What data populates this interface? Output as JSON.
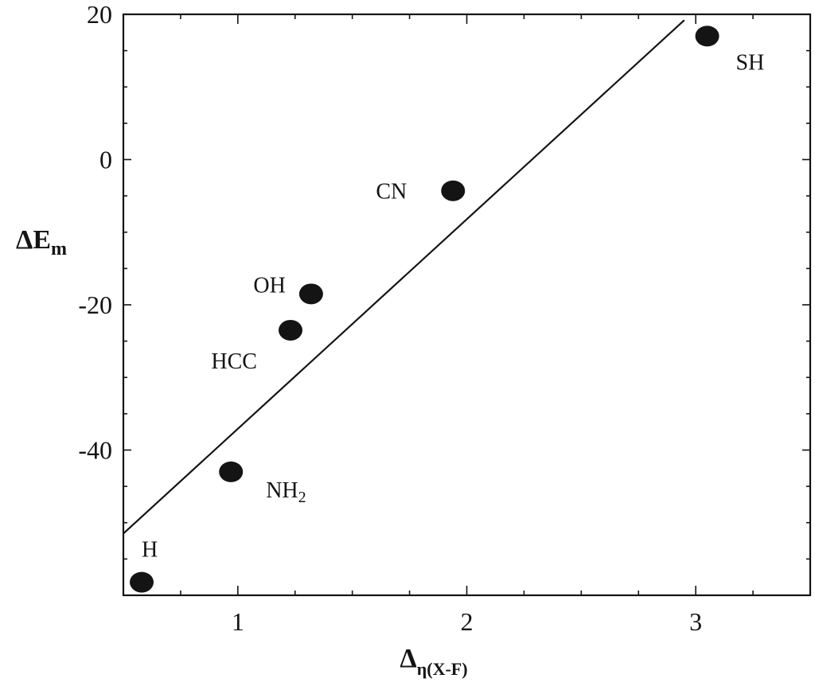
{
  "chart_data": {
    "type": "scatter",
    "title": "",
    "xlabel": "Δ",
    "xlabel_sub": "η(X-F)",
    "ylabel": "ΔE",
    "ylabel_sub": "m",
    "xlim": [
      0.5,
      3.5
    ],
    "ylim": [
      -60,
      20
    ],
    "xticks": [
      1,
      2,
      3
    ],
    "yticks": [
      20,
      0,
      -20,
      -40
    ],
    "xtick_labels": [
      "1",
      "2",
      "3"
    ],
    "ytick_labels": [
      "20",
      "0",
      "-20",
      "-40"
    ],
    "grid": false,
    "legend": "none",
    "points": [
      {
        "label": "H",
        "label_sub": "",
        "x": 0.58,
        "y": -58.2
      },
      {
        "label": "NH",
        "label_sub": "2",
        "x": 0.97,
        "y": -43.0
      },
      {
        "label": "HCC",
        "label_sub": "",
        "x": 1.23,
        "y": -23.5
      },
      {
        "label": "OH",
        "label_sub": "",
        "x": 1.32,
        "y": -18.5
      },
      {
        "label": "CN",
        "label_sub": "",
        "x": 1.94,
        "y": -4.3
      },
      {
        "label": "SH",
        "label_sub": "",
        "x": 3.05,
        "y": 17.0
      }
    ],
    "fit_line": {
      "x": [
        0.5,
        2.95
      ],
      "y": [
        -51.5,
        19.2
      ]
    }
  }
}
